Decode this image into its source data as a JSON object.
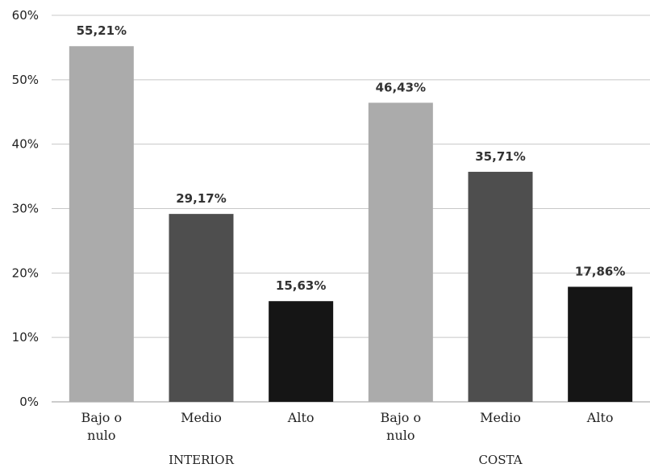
{
  "chart_data": {
    "type": "bar",
    "groups": [
      {
        "name": "INTERIOR",
        "categories": [
          {
            "label": [
              "Bajo o",
              "nulo"
            ],
            "value": 55.21,
            "display": "55,21%",
            "color": "#ababab"
          },
          {
            "label": [
              "Medio"
            ],
            "value": 29.17,
            "display": "29,17%",
            "color": "#4e4e4e"
          },
          {
            "label": [
              "Alto"
            ],
            "value": 15.63,
            "display": "15,63%",
            "color": "#151515"
          }
        ]
      },
      {
        "name": "COSTA",
        "categories": [
          {
            "label": [
              "Bajo o",
              "nulo"
            ],
            "value": 46.43,
            "display": "46,43%",
            "color": "#ababab"
          },
          {
            "label": [
              "Medio"
            ],
            "value": 35.71,
            "display": "35,71%",
            "color": "#4e4e4e"
          },
          {
            "label": [
              "Alto"
            ],
            "value": 17.86,
            "display": "17,86%",
            "color": "#151515"
          }
        ]
      }
    ],
    "yticks": [
      "0%",
      "10%",
      "20%",
      "30%",
      "40%",
      "50%",
      "60%"
    ],
    "ytick_values": [
      0,
      10,
      20,
      30,
      40,
      50,
      60
    ],
    "ylim": [
      0,
      60
    ],
    "grid": true,
    "legend": "none"
  }
}
